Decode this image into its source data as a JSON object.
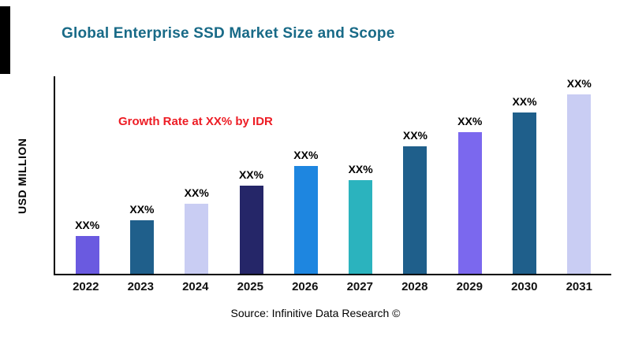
{
  "title": "Global Enterprise SSD Market Size and Scope",
  "ylabel": "USD MILLION",
  "annotation": "Growth Rate at XX% by IDR",
  "source": "Source: Infinitive Data Research ©",
  "colors": {
    "title": "#186a87",
    "annotation": "#ed1c24",
    "axis": "#000000"
  },
  "chart_data": {
    "type": "bar",
    "title": "Global Enterprise SSD Market Size and Scope",
    "xlabel": "",
    "ylabel": "USD MILLION",
    "categories": [
      "2022",
      "2023",
      "2024",
      "2025",
      "2026",
      "2027",
      "2028",
      "2029",
      "2030",
      "2031"
    ],
    "values": [
      21,
      30,
      39,
      49,
      60,
      52,
      71,
      79,
      90,
      100
    ],
    "ylim": [
      0,
      110
    ],
    "bar_labels": [
      "XX%",
      "XX%",
      "XX%",
      "XX%",
      "XX%",
      "XX%",
      "XX%",
      "XX%",
      "XX%",
      "XX%"
    ],
    "bar_colors": [
      "#6A5AE0",
      "#1F5F8B",
      "#C9CDF3",
      "#252668",
      "#1E86E0",
      "#2BB3BE",
      "#1F5F8B",
      "#7B68EE",
      "#1F5F8B",
      "#C9CDF3"
    ],
    "grid": false,
    "legend": "none",
    "annotation": "Growth Rate at XX% by IDR"
  }
}
